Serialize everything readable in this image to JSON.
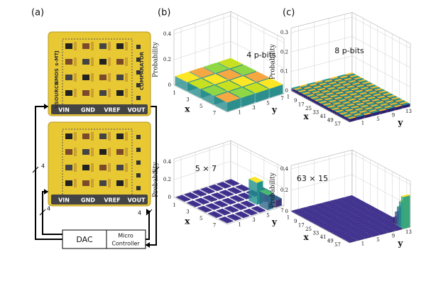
{
  "panel_a": {
    "label": "(a)",
    "top_board": {
      "side_labels": [
        "s-MTJ",
        "NMOS",
        "RSOURCE"
      ],
      "right_label": "COMPARATOR",
      "pins": [
        "VIN",
        "GND",
        "VREF",
        "VOUT"
      ]
    },
    "bottom_board": {
      "pins": [
        "VIN",
        "GND",
        "VREF",
        "VOUT"
      ]
    },
    "bus_labels": [
      "4",
      "4",
      "4",
      "4"
    ],
    "dac": "DAC",
    "controller": [
      "Micro",
      "Controller"
    ]
  },
  "panel_b": {
    "label": "(b)",
    "plots": [
      {
        "annotation": "4 p-bits",
        "z_label": "Probability",
        "z_ticks": [
          "0",
          "0.2",
          "0.4"
        ],
        "x_label": "x",
        "x_ticks": [
          "1",
          "3",
          "5",
          "7"
        ],
        "y_label": "y",
        "y_ticks": [
          "1",
          "3",
          "5",
          "7"
        ]
      },
      {
        "annotation": "5 × 7",
        "z_label": "Probability",
        "z_ticks": [
          "0",
          "0.2",
          "0.4"
        ],
        "x_label": "x",
        "x_ticks": [
          "1",
          "3",
          "5",
          "7"
        ],
        "y_label": "y",
        "y_ticks": [
          "1",
          "3",
          "5",
          "7"
        ]
      }
    ]
  },
  "panel_c": {
    "label": "(c)",
    "plots": [
      {
        "annotation": "8 p-bits",
        "z_label": "Probability",
        "z_ticks": [
          "0",
          "0.1",
          "0.2",
          "0.3"
        ],
        "x_label": "x",
        "x_ticks": [
          "1",
          "9",
          "17",
          "25",
          "33",
          "41",
          "49",
          "57"
        ],
        "y_label": "y",
        "y_ticks": [
          "1",
          "5",
          "9",
          "13"
        ]
      },
      {
        "annotation": "63 × 15",
        "z_label": "Probability",
        "z_ticks": [
          "0",
          "0.2",
          "0.4"
        ],
        "x_label": "x",
        "x_ticks": [
          "1",
          "9",
          "17",
          "25",
          "33",
          "41",
          "49",
          "57"
        ],
        "y_label": "y",
        "y_ticks": [
          "1",
          "5",
          "9",
          "13"
        ]
      }
    ]
  }
}
